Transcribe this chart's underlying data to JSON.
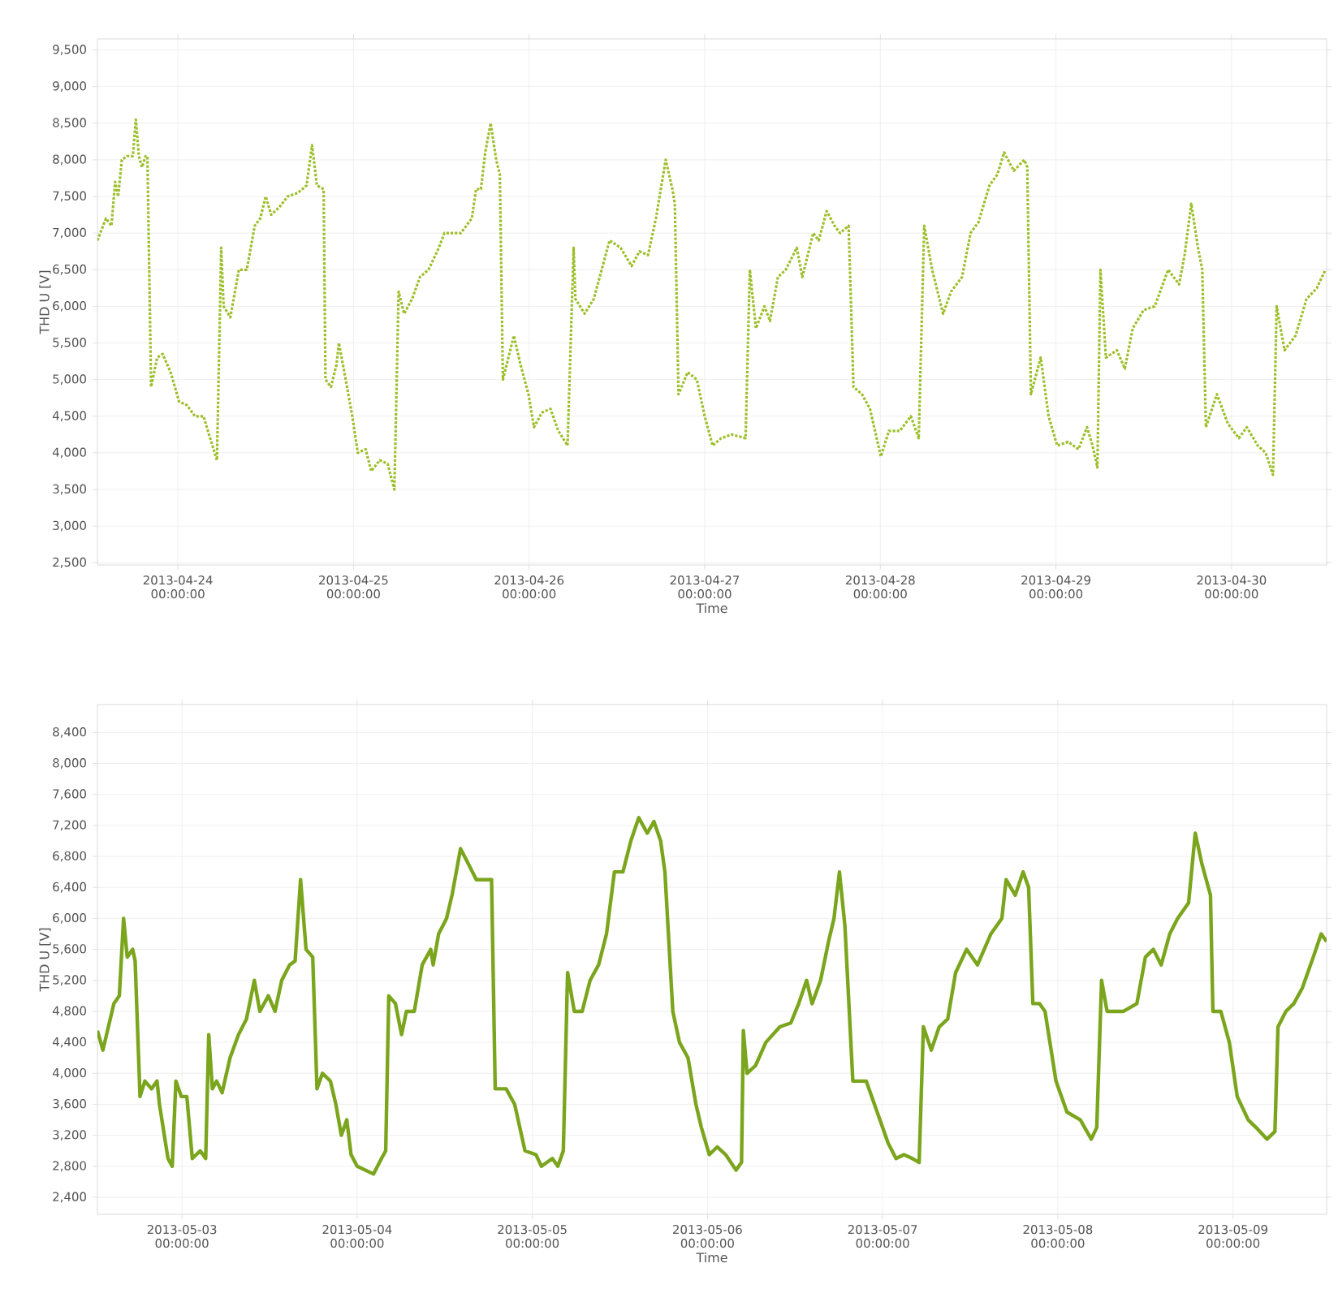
{
  "chart_data": [
    {
      "type": "line",
      "xlabel": "Time",
      "ylabel": "THD U [V]",
      "grid": true,
      "xlim": [
        "2013-04-23T13:00",
        "2013-04-30T13:00"
      ],
      "ylim": [
        2470,
        9650
      ],
      "xticks": [
        {
          "value": "2013-04-24",
          "label": "2013-04-24 00:00:00"
        },
        {
          "value": "2013-04-25",
          "label": "2013-04-25 00:00:00"
        },
        {
          "value": "2013-04-26",
          "label": "2013-04-26 00:00:00"
        },
        {
          "value": "2013-04-27",
          "label": "2013-04-27 00:00:00"
        },
        {
          "value": "2013-04-28",
          "label": "2013-04-28 00:00:00"
        },
        {
          "value": "2013-04-29",
          "label": "2013-04-29 00:00:00"
        },
        {
          "value": "2013-04-30",
          "label": "2013-04-30 00:00:00"
        }
      ],
      "yticks": [
        {
          "value": 2500,
          "label": "2,500"
        },
        {
          "value": 3000,
          "label": "3,000"
        },
        {
          "value": 3500,
          "label": "3,500"
        },
        {
          "value": 4000,
          "label": "4,000"
        },
        {
          "value": 4500,
          "label": "4,500"
        },
        {
          "value": 5000,
          "label": "5,000"
        },
        {
          "value": 5500,
          "label": "5,500"
        },
        {
          "value": 6000,
          "label": "6,000"
        },
        {
          "value": 6500,
          "label": "6,500"
        },
        {
          "value": 7000,
          "label": "7,000"
        },
        {
          "value": 7500,
          "label": "7,500"
        },
        {
          "value": 8000,
          "label": "8,000"
        },
        {
          "value": 8500,
          "label": "8,500"
        },
        {
          "value": 9000,
          "label": "9,000"
        },
        {
          "value": 9500,
          "label": "9,500"
        }
      ],
      "x": [
        "2013-04-23T13:00",
        "2013-04-23T14:10",
        "2013-04-23T14:55",
        "2013-04-23T15:25",
        "2013-04-23T15:50",
        "2013-04-23T16:20",
        "2013-04-23T17:05",
        "2013-04-23T17:50",
        "2013-04-23T18:15",
        "2013-04-23T18:40",
        "2013-04-23T19:05",
        "2013-04-23T19:35",
        "2013-04-23T19:50",
        "2013-04-23T20:20",
        "2013-04-23T21:10",
        "2013-04-23T21:55",
        "2013-04-23T23:00",
        "2013-04-24T00:10",
        "2013-04-24T01:15",
        "2013-04-24T02:20",
        "2013-04-24T03:30",
        "2013-04-24T04:15",
        "2013-04-24T05:20",
        "2013-04-24T05:55",
        "2013-04-24T06:15",
        "2013-04-24T07:10",
        "2013-04-24T08:20",
        "2013-04-24T09:25",
        "2013-04-24T10:30",
        "2013-04-24T11:15",
        "2013-04-24T12:00",
        "2013-04-24T12:45",
        "2013-04-24T13:50",
        "2013-04-24T15:00",
        "2013-04-24T16:25",
        "2013-04-24T17:35",
        "2013-04-24T18:20",
        "2013-04-24T19:00",
        "2013-04-24T19:55",
        "2013-04-24T20:10",
        "2013-04-24T20:55",
        "2013-04-24T21:40",
        "2013-04-24T22:00",
        "2013-04-24T22:45",
        "2013-04-24T23:50",
        "2013-04-25T00:35",
        "2013-04-25T01:40",
        "2013-04-25T02:25",
        "2013-04-25T03:35",
        "2013-04-25T04:40",
        "2013-04-25T05:35",
        "2013-04-25T06:10",
        "2013-04-25T06:55",
        "2013-04-25T08:00",
        "2013-04-25T09:05",
        "2013-04-25T10:15",
        "2013-04-25T11:40",
        "2013-04-25T12:25",
        "2013-04-25T14:40",
        "2013-04-25T16:10",
        "2013-04-25T16:45",
        "2013-04-25T17:25",
        "2013-04-25T18:00",
        "2013-04-25T18:45",
        "2013-04-25T19:30",
        "2013-04-25T20:00",
        "2013-04-25T20:25",
        "2013-04-25T20:55",
        "2013-04-25T21:55",
        "2013-04-25T22:50",
        "2013-04-25T23:55",
        "2013-04-26T00:40",
        "2013-04-26T01:45",
        "2013-04-26T02:55",
        "2013-04-26T04:00",
        "2013-04-26T05:15",
        "2013-04-26T06:05",
        "2013-04-26T06:20",
        "2013-04-26T07:35",
        "2013-04-26T08:50",
        "2013-04-26T09:55",
        "2013-04-26T11:00",
        "2013-04-26T12:30",
        "2013-04-26T14:00",
        "2013-04-26T15:05",
        "2013-04-26T16:15",
        "2013-04-26T17:20",
        "2013-04-26T18:40",
        "2013-04-26T19:35",
        "2013-04-26T19:55",
        "2013-04-26T20:25",
        "2013-04-26T21:40",
        "2013-04-26T22:55",
        "2013-04-27T00:00",
        "2013-04-27T01:05",
        "2013-04-27T02:15",
        "2013-04-27T03:40",
        "2013-04-27T05:35",
        "2013-04-27T06:10",
        "2013-04-27T07:00",
        "2013-04-27T08:10",
        "2013-04-27T08:55",
        "2013-04-27T10:00",
        "2013-04-27T11:05",
        "2013-04-27T12:35",
        "2013-04-27T13:20",
        "2013-04-27T14:50",
        "2013-04-27T15:35",
        "2013-04-27T16:40",
        "2013-04-27T17:45",
        "2013-04-27T18:30",
        "2013-04-27T19:40",
        "2013-04-27T20:20",
        "2013-04-27T21:30",
        "2013-04-27T22:35",
        "2013-04-28T00:05",
        "2013-04-28T01:10",
        "2013-04-28T02:40",
        "2013-04-28T04:10",
        "2013-04-28T05:15",
        "2013-04-28T06:00",
        "2013-04-28T07:05",
        "2013-04-28T08:35",
        "2013-04-28T09:40",
        "2013-04-28T11:10",
        "2013-04-28T12:20",
        "2013-04-28T13:25",
        "2013-04-28T14:55",
        "2013-04-28T16:00",
        "2013-04-28T16:55",
        "2013-04-28T18:15",
        "2013-04-28T19:40",
        "2013-04-28T20:05",
        "2013-04-28T20:35",
        "2013-04-28T21:55",
        "2013-04-28T23:00",
        "2013-04-29T00:10",
        "2013-04-29T01:40",
        "2013-04-29T03:05",
        "2013-04-29T04:15",
        "2013-04-29T05:00",
        "2013-04-29T05:40",
        "2013-04-29T06:05",
        "2013-04-29T06:50",
        "2013-04-29T08:20",
        "2013-04-29T09:25",
        "2013-04-29T10:30",
        "2013-04-29T12:00",
        "2013-04-29T13:30",
        "2013-04-29T15:20",
        "2013-04-29T16:50",
        "2013-04-29T17:35",
        "2013-04-29T18:30",
        "2013-04-29T19:25",
        "2013-04-29T20:00",
        "2013-04-29T20:30",
        "2013-04-29T22:00",
        "2013-04-29T23:30",
        "2013-04-30T01:00",
        "2013-04-30T02:05",
        "2013-04-30T03:35",
        "2013-04-30T04:40",
        "2013-04-30T05:40",
        "2013-04-30T06:10",
        "2013-04-30T07:15",
        "2013-04-30T08:45",
        "2013-04-30T10:15",
        "2013-04-30T11:40",
        "2013-04-30T12:50"
      ],
      "series": [
        {
          "color": "#9dbf2a",
          "line_style": "dotted",
          "values": [
            6900,
            7200,
            7100,
            7700,
            7500,
            8000,
            8050,
            8050,
            8550,
            8050,
            7900,
            8050,
            8050,
            4900,
            5300,
            5350,
            5100,
            4700,
            4650,
            4500,
            4500,
            4250,
            3900,
            6800,
            6000,
            5850,
            6500,
            6500,
            7100,
            7200,
            7500,
            7250,
            7350,
            7500,
            7550,
            7650,
            8200,
            7650,
            7600,
            5000,
            4900,
            5200,
            5500,
            5100,
            4500,
            4000,
            4050,
            3750,
            3900,
            3850,
            3500,
            6200,
            5900,
            6100,
            6400,
            6500,
            6800,
            7000,
            7000,
            7200,
            7600,
            7600,
            8100,
            8500,
            8000,
            7800,
            5000,
            5200,
            5600,
            5200,
            4800,
            4350,
            4550,
            4600,
            4300,
            4100,
            6800,
            6100,
            5900,
            6100,
            6500,
            6900,
            6800,
            6550,
            6750,
            6700,
            7200,
            8000,
            7600,
            7400,
            4800,
            5100,
            5000,
            4500,
            4100,
            4200,
            4250,
            4200,
            6500,
            5700,
            6000,
            5800,
            6400,
            6500,
            6800,
            6400,
            7000,
            6900,
            7300,
            7100,
            7000,
            7100,
            4900,
            4800,
            4600,
            3950,
            4300,
            4300,
            4500,
            4200,
            7100,
            6500,
            5900,
            6200,
            6400,
            7000,
            7150,
            7650,
            7800,
            8100,
            7850,
            8000,
            7900,
            4800,
            5300,
            4500,
            4100,
            4150,
            4050,
            4350,
            4100,
            3800,
            6500,
            5300,
            5400,
            5150,
            5700,
            5950,
            6000,
            6500,
            6300,
            6700,
            7400,
            6800,
            6500,
            4350,
            4800,
            4400,
            4200,
            4350,
            4100,
            4000,
            3700,
            6000,
            5400,
            5600,
            6100,
            6250,
            6500
          ]
        }
      ]
    },
    {
      "type": "line",
      "xlabel": "Time",
      "ylabel": "THD U [V]",
      "grid": true,
      "xlim": [
        "2013-05-02T12:25",
        "2013-05-09T12:50"
      ],
      "ylim": [
        2180,
        8760
      ],
      "xticks": [
        {
          "value": "2013-05-03",
          "label": "2013-05-03 00:00:00"
        },
        {
          "value": "2013-05-04",
          "label": "2013-05-04 00:00:00"
        },
        {
          "value": "2013-05-05",
          "label": "2013-05-05 00:00:00"
        },
        {
          "value": "2013-05-06",
          "label": "2013-05-06 00:00:00"
        },
        {
          "value": "2013-05-07",
          "label": "2013-05-07 00:00:00"
        },
        {
          "value": "2013-05-08",
          "label": "2013-05-08 00:00:00"
        },
        {
          "value": "2013-05-09",
          "label": "2013-05-09 00:00:00"
        }
      ],
      "yticks": [
        {
          "value": 2400,
          "label": "2,400"
        },
        {
          "value": 2800,
          "label": "2,800"
        },
        {
          "value": 3200,
          "label": "3,200"
        },
        {
          "value": 3600,
          "label": "3,600"
        },
        {
          "value": 4000,
          "label": "4,000"
        },
        {
          "value": 4400,
          "label": "4,400"
        },
        {
          "value": 4800,
          "label": "4,800"
        },
        {
          "value": 5200,
          "label": "5,200"
        },
        {
          "value": 5600,
          "label": "5,600"
        },
        {
          "value": 6000,
          "label": "6,000"
        },
        {
          "value": 6400,
          "label": "6,400"
        },
        {
          "value": 6800,
          "label": "6,800"
        },
        {
          "value": 7200,
          "label": "7,200"
        },
        {
          "value": 7600,
          "label": "7,600"
        },
        {
          "value": 8000,
          "label": "8,000"
        },
        {
          "value": 8400,
          "label": "8,400"
        }
      ],
      "x": [
        "2013-05-02T12:25",
        "2013-05-02T13:10",
        "2013-05-02T13:55",
        "2013-05-02T14:40",
        "2013-05-02T15:25",
        "2013-05-02T16:00",
        "2013-05-02T16:30",
        "2013-05-02T17:15",
        "2013-05-02T17:35",
        "2013-05-02T18:15",
        "2013-05-02T18:55",
        "2013-05-02T19:50",
        "2013-05-02T20:35",
        "2013-05-02T20:55",
        "2013-05-02T21:35",
        "2013-05-02T22:05",
        "2013-05-02T22:40",
        "2013-05-02T23:10",
        "2013-05-02T23:55",
        "2013-05-03T00:40",
        "2013-05-03T01:25",
        "2013-05-03T02:30",
        "2013-05-03T03:15",
        "2013-05-03T03:40",
        "2013-05-03T04:10",
        "2013-05-03T04:45",
        "2013-05-03T05:30",
        "2013-05-03T06:35",
        "2013-05-03T07:45",
        "2013-05-03T08:50",
        "2013-05-03T09:55",
        "2013-05-03T10:40",
        "2013-05-03T11:50",
        "2013-05-03T12:45",
        "2013-05-03T13:40",
        "2013-05-03T14:45",
        "2013-05-03T15:30",
        "2013-05-03T16:15",
        "2013-05-03T17:00",
        "2013-05-03T17:55",
        "2013-05-03T18:30",
        "2013-05-03T19:15",
        "2013-05-03T20:20",
        "2013-05-03T21:05",
        "2013-05-03T21:50",
        "2013-05-03T22:35",
        "2013-05-03T23:10",
        "2013-05-04T00:00",
        "2013-05-04T02:15",
        "2013-05-04T03:20",
        "2013-05-04T03:55",
        "2013-05-04T04:20",
        "2013-05-04T05:15",
        "2013-05-04T06:05",
        "2013-05-04T06:45",
        "2013-05-04T07:50",
        "2013-05-04T08:55",
        "2013-05-04T10:05",
        "2013-05-04T10:25",
        "2013-05-04T11:10",
        "2013-05-04T12:15",
        "2013-05-04T13:00",
        "2013-05-04T14:10",
        "2013-05-04T15:15",
        "2013-05-04T16:20",
        "2013-05-04T17:30",
        "2013-05-04T18:25",
        "2013-05-04T18:55",
        "2013-05-04T20:25",
        "2013-05-04T21:35",
        "2013-05-04T23:00",
        "2013-05-05T00:30",
        "2013-05-05T01:15",
        "2013-05-05T02:45",
        "2013-05-05T03:30",
        "2013-05-05T04:15",
        "2013-05-05T04:50",
        "2013-05-05T05:45",
        "2013-05-05T06:50",
        "2013-05-05T07:55",
        "2013-05-05T09:05",
        "2013-05-05T10:10",
        "2013-05-05T11:15",
        "2013-05-05T12:25",
        "2013-05-05T13:30",
        "2013-05-05T14:35",
        "2013-05-05T15:45",
        "2013-05-05T16:40",
        "2013-05-05T17:35",
        "2013-05-05T18:10",
        "2013-05-05T19:15",
        "2013-05-05T20:10",
        "2013-05-05T21:20",
        "2013-05-05T22:25",
        "2013-05-05T23:10",
        "2013-05-06T00:15",
        "2013-05-06T01:20",
        "2013-05-06T02:30",
        "2013-05-06T03:55",
        "2013-05-06T04:40",
        "2013-05-06T04:55",
        "2013-05-06T05:25",
        "2013-05-06T06:35",
        "2013-05-06T08:00",
        "2013-05-06T09:55",
        "2013-05-06T11:25",
        "2013-05-06T12:30",
        "2013-05-06T13:35",
        "2013-05-06T14:20",
        "2013-05-06T15:30",
        "2013-05-06T16:35",
        "2013-05-06T17:20",
        "2013-05-06T18:05",
        "2013-05-06T18:50",
        "2013-05-06T19:55",
        "2013-05-06T21:45",
        "2013-05-06T23:15",
        "2013-05-07T00:45",
        "2013-05-07T01:50",
        "2013-05-07T02:55",
        "2013-05-07T04:05",
        "2013-05-07T05:00",
        "2013-05-07T05:35",
        "2013-05-07T06:40",
        "2013-05-07T07:45",
        "2013-05-07T08:55",
        "2013-05-07T10:00",
        "2013-05-07T11:30",
        "2013-05-07T13:00",
        "2013-05-07T14:50",
        "2013-05-07T16:20",
        "2013-05-07T16:55",
        "2013-05-07T18:10",
        "2013-05-07T19:15",
        "2013-05-07T20:00",
        "2013-05-07T20:35",
        "2013-05-07T21:30",
        "2013-05-07T22:15",
        "2013-05-07T23:45",
        "2013-05-08T01:15",
        "2013-05-08T03:05",
        "2013-05-08T04:35",
        "2013-05-08T05:20",
        "2013-05-08T06:00",
        "2013-05-08T06:45",
        "2013-05-08T09:00",
        "2013-05-08T10:50",
        "2013-05-08T12:00",
        "2013-05-08T13:05",
        "2013-05-08T14:10",
        "2013-05-08T15:20",
        "2013-05-08T16:25",
        "2013-05-08T17:55",
        "2013-05-08T18:50",
        "2013-05-08T19:45",
        "2013-05-08T20:55",
        "2013-05-08T21:15",
        "2013-05-08T22:20",
        "2013-05-08T23:30",
        "2013-05-09T00:35",
        "2013-05-09T02:05",
        "2013-05-09T03:10",
        "2013-05-09T04:40",
        "2013-05-09T05:45",
        "2013-05-09T06:10",
        "2013-05-09T07:15",
        "2013-05-09T08:20",
        "2013-05-09T09:30",
        "2013-05-09T11:00",
        "2013-05-09T12:05",
        "2013-05-09T12:50"
      ],
      "series": [
        {
          "color": "#7aa51c",
          "line_style": "solid",
          "values": [
            4550,
            4300,
            4600,
            4900,
            5000,
            6000,
            5500,
            5600,
            5450,
            3700,
            3900,
            3800,
            3900,
            3600,
            3200,
            2900,
            2800,
            3900,
            3700,
            3700,
            2900,
            3000,
            2900,
            4500,
            3800,
            3900,
            3750,
            4200,
            4500,
            4700,
            5200,
            4800,
            5000,
            4800,
            5200,
            5400,
            5450,
            6500,
            5600,
            5500,
            3800,
            4000,
            3900,
            3600,
            3200,
            3400,
            2950,
            2800,
            2700,
            2900,
            3000,
            5000,
            4900,
            4500,
            4800,
            4800,
            5400,
            5600,
            5400,
            5800,
            6000,
            6300,
            6900,
            6700,
            6500,
            6500,
            6500,
            3800,
            3800,
            3600,
            3000,
            2950,
            2800,
            2900,
            2800,
            3000,
            5300,
            4800,
            4800,
            5200,
            5400,
            5800,
            6600,
            6600,
            7000,
            7300,
            7100,
            7250,
            7000,
            6600,
            4800,
            4400,
            4200,
            3600,
            3300,
            2950,
            3050,
            2950,
            2750,
            2850,
            4550,
            4000,
            4100,
            4400,
            4600,
            4650,
            4900,
            5200,
            4900,
            5200,
            5700,
            6000,
            6600,
            5900,
            3900,
            3900,
            3500,
            3100,
            2900,
            2950,
            2900,
            2850,
            4600,
            4300,
            4600,
            4700,
            5300,
            5600,
            5400,
            5800,
            6000,
            6500,
            6300,
            6600,
            6400,
            4900,
            4900,
            4800,
            3900,
            3500,
            3400,
            3150,
            3300,
            5200,
            4800,
            4800,
            4900,
            5500,
            5600,
            5400,
            5800,
            6000,
            6200,
            7100,
            6700,
            6300,
            4800,
            4800,
            4400,
            3700,
            3400,
            3300,
            3150,
            3250,
            4600,
            4800,
            4900,
            5100,
            5500,
            5800,
            5700
          ]
        }
      ]
    }
  ]
}
